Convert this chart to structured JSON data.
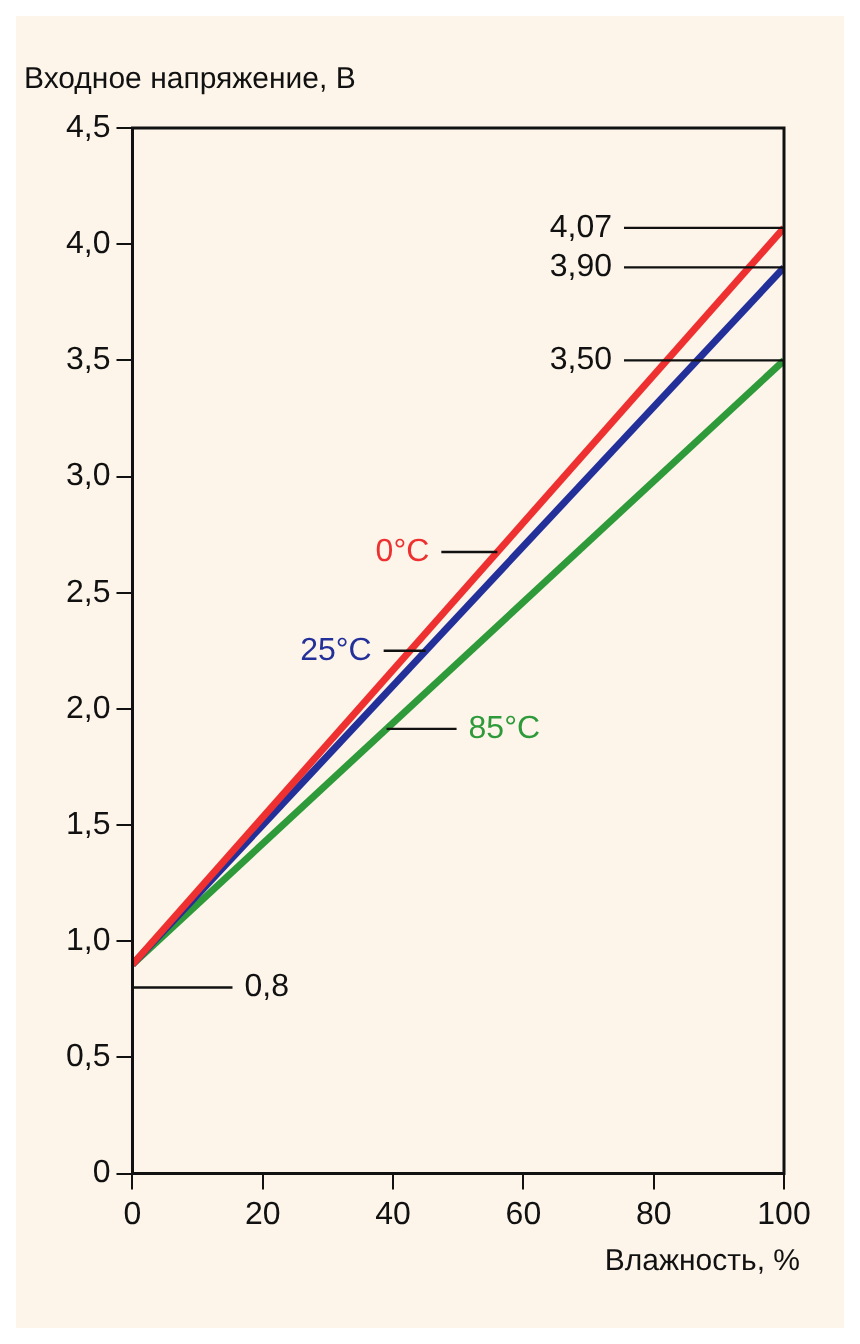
{
  "chart_data": {
    "type": "line",
    "ylabel": "Входное напряжение, В",
    "xlabel": "Влажность, %",
    "x": [
      0,
      100
    ],
    "series": [
      {
        "name": "0°C",
        "color": "#ee3030",
        "values": [
          0.9,
          4.07
        ],
        "value_labels": [
          null,
          "4,07"
        ]
      },
      {
        "name": "25°C",
        "color": "#23309a",
        "values": [
          0.9,
          3.9
        ],
        "value_labels": [
          null,
          "3,90"
        ]
      },
      {
        "name": "85°C",
        "color": "#2e9a3a",
        "values": [
          0.9,
          3.5
        ],
        "value_labels": [
          null,
          "3,50"
        ]
      }
    ],
    "xlim": [
      0,
      100
    ],
    "xticks": [
      0,
      20,
      40,
      60,
      80,
      100
    ],
    "ylim": [
      0,
      4.5
    ],
    "yticks": [
      {
        "value": 0,
        "label": "0"
      },
      {
        "value": 0.5,
        "label": "0,5"
      },
      {
        "value": 1,
        "label": "1,0"
      },
      {
        "value": 1.5,
        "label": "1,5"
      },
      {
        "value": 2,
        "label": "2,0"
      },
      {
        "value": 2.5,
        "label": "2,5"
      },
      {
        "value": 3,
        "label": "3,0"
      },
      {
        "value": 3.5,
        "label": "3,5"
      },
      {
        "value": 4,
        "label": "4,0"
      },
      {
        "value": 4.5,
        "label": "4,5"
      }
    ],
    "annotations": [
      "0,8"
    ],
    "grid": false,
    "legend": false,
    "marker": "none",
    "line_style": "solid"
  }
}
